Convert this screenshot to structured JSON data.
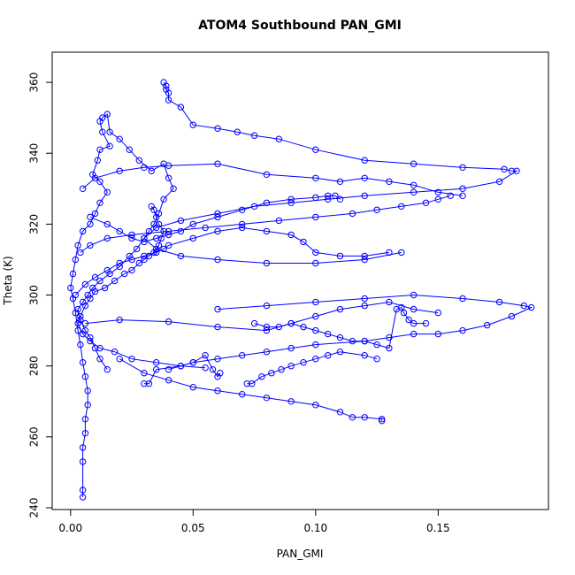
{
  "chart_data": {
    "type": "scatter",
    "title": "ATOM4 Southbound PAN_GMI",
    "xlabel": "PAN_GMI",
    "ylabel": "Theta (K)",
    "xlim": [
      -0.0075,
      0.195
    ],
    "ylim": [
      239.5,
      368.5
    ],
    "x_ticks": [
      0.0,
      0.05,
      0.1,
      0.15
    ],
    "x_tick_labels": [
      "0.00",
      "0.05",
      "0.10",
      "0.15"
    ],
    "y_ticks": [
      240,
      260,
      280,
      300,
      320,
      340,
      360
    ],
    "y_tick_labels": [
      "240",
      "260",
      "280",
      "300",
      "320",
      "340",
      "360"
    ],
    "grid": false,
    "connected": true,
    "marker": "open-circle",
    "color": "#0000ff",
    "series": [
      {
        "points": [
          [
            0.005,
            243
          ],
          [
            0.005,
            245
          ],
          [
            0.005,
            253
          ],
          [
            0.005,
            257
          ],
          [
            0.006,
            261
          ],
          [
            0.006,
            265
          ],
          [
            0.007,
            269
          ],
          [
            0.007,
            273
          ],
          [
            0.006,
            277
          ],
          [
            0.005,
            281
          ],
          [
            0.004,
            286
          ],
          [
            0.003,
            290
          ],
          [
            0.002,
            295
          ],
          [
            0.001,
            299
          ],
          [
            0.0,
            302
          ],
          [
            0.001,
            306
          ],
          [
            0.002,
            310
          ],
          [
            0.003,
            314
          ],
          [
            0.005,
            318
          ],
          [
            0.008,
            320
          ],
          [
            0.01,
            323
          ],
          [
            0.012,
            326
          ],
          [
            0.015,
            329
          ],
          [
            0.012,
            332
          ],
          [
            0.009,
            334
          ],
          [
            0.011,
            338
          ],
          [
            0.012,
            341
          ],
          [
            0.016,
            342
          ],
          [
            0.013,
            346
          ],
          [
            0.012,
            349
          ],
          [
            0.013,
            350
          ],
          [
            0.015,
            351
          ],
          [
            0.016,
            346
          ],
          [
            0.02,
            344
          ],
          [
            0.024,
            341
          ],
          [
            0.028,
            338
          ],
          [
            0.033,
            335
          ],
          [
            0.038,
            337
          ],
          [
            0.04,
            333
          ],
          [
            0.042,
            330
          ],
          [
            0.038,
            327
          ],
          [
            0.036,
            323
          ],
          [
            0.034,
            320
          ],
          [
            0.032,
            318
          ],
          [
            0.03,
            316
          ],
          [
            0.027,
            313
          ],
          [
            0.024,
            311
          ],
          [
            0.02,
            308
          ],
          [
            0.016,
            306
          ],
          [
            0.012,
            304
          ],
          [
            0.009,
            302
          ],
          [
            0.007,
            300
          ],
          [
            0.005,
            298
          ],
          [
            0.003,
            296
          ],
          [
            0.004,
            293
          ],
          [
            0.006,
            290
          ],
          [
            0.008,
            288
          ],
          [
            0.01,
            285
          ],
          [
            0.012,
            282
          ],
          [
            0.015,
            279
          ]
        ]
      },
      {
        "points": [
          [
            0.038,
            360
          ],
          [
            0.039,
            359
          ],
          [
            0.039,
            358
          ],
          [
            0.04,
            357
          ],
          [
            0.04,
            355
          ],
          [
            0.045,
            353
          ],
          [
            0.05,
            348
          ],
          [
            0.06,
            347
          ],
          [
            0.068,
            346
          ],
          [
            0.075,
            345
          ],
          [
            0.085,
            344
          ],
          [
            0.1,
            341
          ],
          [
            0.12,
            338
          ],
          [
            0.14,
            337
          ],
          [
            0.16,
            336
          ],
          [
            0.177,
            335.5
          ],
          [
            0.18,
            335
          ],
          [
            0.182,
            335
          ],
          [
            0.175,
            332
          ],
          [
            0.16,
            330
          ],
          [
            0.14,
            329
          ],
          [
            0.12,
            328
          ],
          [
            0.105,
            327
          ],
          [
            0.09,
            326
          ],
          [
            0.075,
            325
          ],
          [
            0.06,
            323
          ],
          [
            0.045,
            321
          ],
          [
            0.035,
            319
          ],
          [
            0.03,
            316
          ],
          [
            0.035,
            313
          ],
          [
            0.045,
            311
          ],
          [
            0.06,
            310
          ],
          [
            0.08,
            309
          ],
          [
            0.1,
            309
          ],
          [
            0.12,
            310
          ],
          [
            0.135,
            312
          ]
        ]
      },
      {
        "points": [
          [
            0.033,
            325
          ],
          [
            0.034,
            324
          ],
          [
            0.035,
            322
          ],
          [
            0.036,
            320
          ],
          [
            0.038,
            318
          ],
          [
            0.037,
            316
          ],
          [
            0.036,
            314
          ],
          [
            0.034,
            312
          ],
          [
            0.032,
            311
          ],
          [
            0.03,
            310
          ],
          [
            0.028,
            309
          ],
          [
            0.025,
            307
          ],
          [
            0.022,
            306
          ],
          [
            0.018,
            304
          ],
          [
            0.014,
            302
          ],
          [
            0.01,
            301
          ],
          [
            0.008,
            299
          ],
          [
            0.006,
            297
          ],
          [
            0.004,
            294
          ],
          [
            0.003,
            292
          ],
          [
            0.005,
            289
          ],
          [
            0.008,
            287
          ],
          [
            0.012,
            285
          ],
          [
            0.018,
            284
          ],
          [
            0.025,
            282
          ],
          [
            0.035,
            281
          ],
          [
            0.045,
            280
          ],
          [
            0.055,
            279.5
          ]
        ]
      },
      {
        "points": [
          [
            0.06,
            296
          ],
          [
            0.08,
            297
          ],
          [
            0.1,
            298
          ],
          [
            0.12,
            299
          ],
          [
            0.14,
            300
          ],
          [
            0.16,
            299
          ],
          [
            0.175,
            298
          ],
          [
            0.185,
            297
          ],
          [
            0.188,
            296.5
          ],
          [
            0.18,
            294
          ],
          [
            0.17,
            291.5
          ],
          [
            0.16,
            290
          ],
          [
            0.15,
            289
          ],
          [
            0.14,
            289
          ],
          [
            0.13,
            288
          ],
          [
            0.12,
            287
          ],
          [
            0.1,
            286
          ],
          [
            0.09,
            285
          ],
          [
            0.08,
            284
          ],
          [
            0.07,
            283
          ],
          [
            0.06,
            282
          ],
          [
            0.05,
            281
          ],
          [
            0.04,
            279
          ]
        ]
      },
      {
        "points": [
          [
            0.075,
            292
          ],
          [
            0.08,
            291
          ],
          [
            0.085,
            291
          ],
          [
            0.09,
            292
          ],
          [
            0.095,
            291
          ],
          [
            0.1,
            290
          ],
          [
            0.105,
            289
          ],
          [
            0.11,
            288
          ],
          [
            0.115,
            287
          ],
          [
            0.12,
            287
          ],
          [
            0.125,
            286
          ],
          [
            0.13,
            285
          ],
          [
            0.133,
            296
          ],
          [
            0.135,
            296.5
          ],
          [
            0.136,
            295
          ],
          [
            0.138,
            293
          ],
          [
            0.14,
            292
          ],
          [
            0.145,
            292
          ]
        ]
      },
      {
        "points": [
          [
            0.072,
            275
          ],
          [
            0.074,
            275
          ],
          [
            0.078,
            277
          ],
          [
            0.082,
            278
          ],
          [
            0.086,
            279
          ],
          [
            0.09,
            280
          ],
          [
            0.095,
            281
          ],
          [
            0.1,
            282
          ],
          [
            0.105,
            283
          ],
          [
            0.11,
            284
          ],
          [
            0.12,
            283
          ],
          [
            0.125,
            282
          ]
        ]
      },
      {
        "points": [
          [
            0.02,
            282
          ],
          [
            0.03,
            278
          ],
          [
            0.04,
            276
          ],
          [
            0.05,
            274
          ],
          [
            0.06,
            273
          ],
          [
            0.07,
            272
          ],
          [
            0.08,
            271
          ],
          [
            0.09,
            270
          ],
          [
            0.1,
            269
          ],
          [
            0.11,
            267
          ],
          [
            0.115,
            265.5
          ],
          [
            0.12,
            265.5
          ],
          [
            0.127,
            265
          ],
          [
            0.127,
            264.5
          ]
        ]
      },
      {
        "points": [
          [
            0.03,
            275
          ],
          [
            0.032,
            275
          ],
          [
            0.035,
            279
          ],
          [
            0.045,
            280
          ],
          [
            0.05,
            281
          ],
          [
            0.055,
            283
          ],
          [
            0.058,
            279
          ],
          [
            0.06,
            277
          ],
          [
            0.061,
            278
          ]
        ]
      },
      {
        "points": [
          [
            0.004,
            312
          ],
          [
            0.008,
            314
          ],
          [
            0.015,
            316
          ],
          [
            0.025,
            317
          ],
          [
            0.04,
            318
          ],
          [
            0.055,
            319
          ],
          [
            0.07,
            320
          ],
          [
            0.085,
            321
          ],
          [
            0.1,
            322
          ],
          [
            0.115,
            323
          ],
          [
            0.125,
            324
          ],
          [
            0.135,
            325
          ],
          [
            0.145,
            326
          ],
          [
            0.15,
            327
          ],
          [
            0.155,
            328
          ]
        ]
      },
      {
        "points": [
          [
            0.005,
            330
          ],
          [
            0.01,
            333
          ],
          [
            0.02,
            335
          ],
          [
            0.03,
            336
          ],
          [
            0.04,
            336.5
          ],
          [
            0.06,
            337
          ],
          [
            0.08,
            334
          ],
          [
            0.1,
            333
          ],
          [
            0.11,
            332
          ],
          [
            0.12,
            333
          ],
          [
            0.13,
            332
          ],
          [
            0.14,
            331
          ],
          [
            0.15,
            329
          ],
          [
            0.16,
            328
          ]
        ]
      },
      {
        "points": [
          [
            0.006,
            292
          ],
          [
            0.02,
            293
          ],
          [
            0.04,
            292.5
          ],
          [
            0.06,
            291
          ],
          [
            0.08,
            290
          ],
          [
            0.09,
            292
          ],
          [
            0.1,
            294
          ],
          [
            0.11,
            296
          ],
          [
            0.12,
            297
          ],
          [
            0.13,
            298
          ],
          [
            0.14,
            296
          ],
          [
            0.15,
            295
          ]
        ]
      },
      {
        "points": [
          [
            0.008,
            322
          ],
          [
            0.015,
            320
          ],
          [
            0.02,
            318
          ],
          [
            0.025,
            316
          ],
          [
            0.03,
            315
          ],
          [
            0.035,
            316
          ],
          [
            0.04,
            317
          ],
          [
            0.045,
            318
          ],
          [
            0.05,
            320
          ],
          [
            0.06,
            322
          ],
          [
            0.07,
            324
          ],
          [
            0.08,
            326
          ],
          [
            0.09,
            327
          ],
          [
            0.1,
            327.5
          ],
          [
            0.105,
            328
          ],
          [
            0.108,
            328
          ],
          [
            0.11,
            327
          ]
        ]
      },
      {
        "points": [
          [
            0.002,
            300
          ],
          [
            0.006,
            303
          ],
          [
            0.01,
            305
          ],
          [
            0.015,
            307
          ],
          [
            0.02,
            309
          ],
          [
            0.025,
            310
          ],
          [
            0.03,
            311
          ],
          [
            0.035,
            312
          ],
          [
            0.038,
            313
          ],
          [
            0.04,
            314
          ],
          [
            0.05,
            316
          ],
          [
            0.06,
            318
          ],
          [
            0.07,
            319
          ],
          [
            0.08,
            318
          ],
          [
            0.09,
            317
          ],
          [
            0.095,
            315
          ],
          [
            0.1,
            312
          ],
          [
            0.11,
            311
          ],
          [
            0.12,
            311
          ],
          [
            0.13,
            312
          ]
        ]
      }
    ]
  }
}
